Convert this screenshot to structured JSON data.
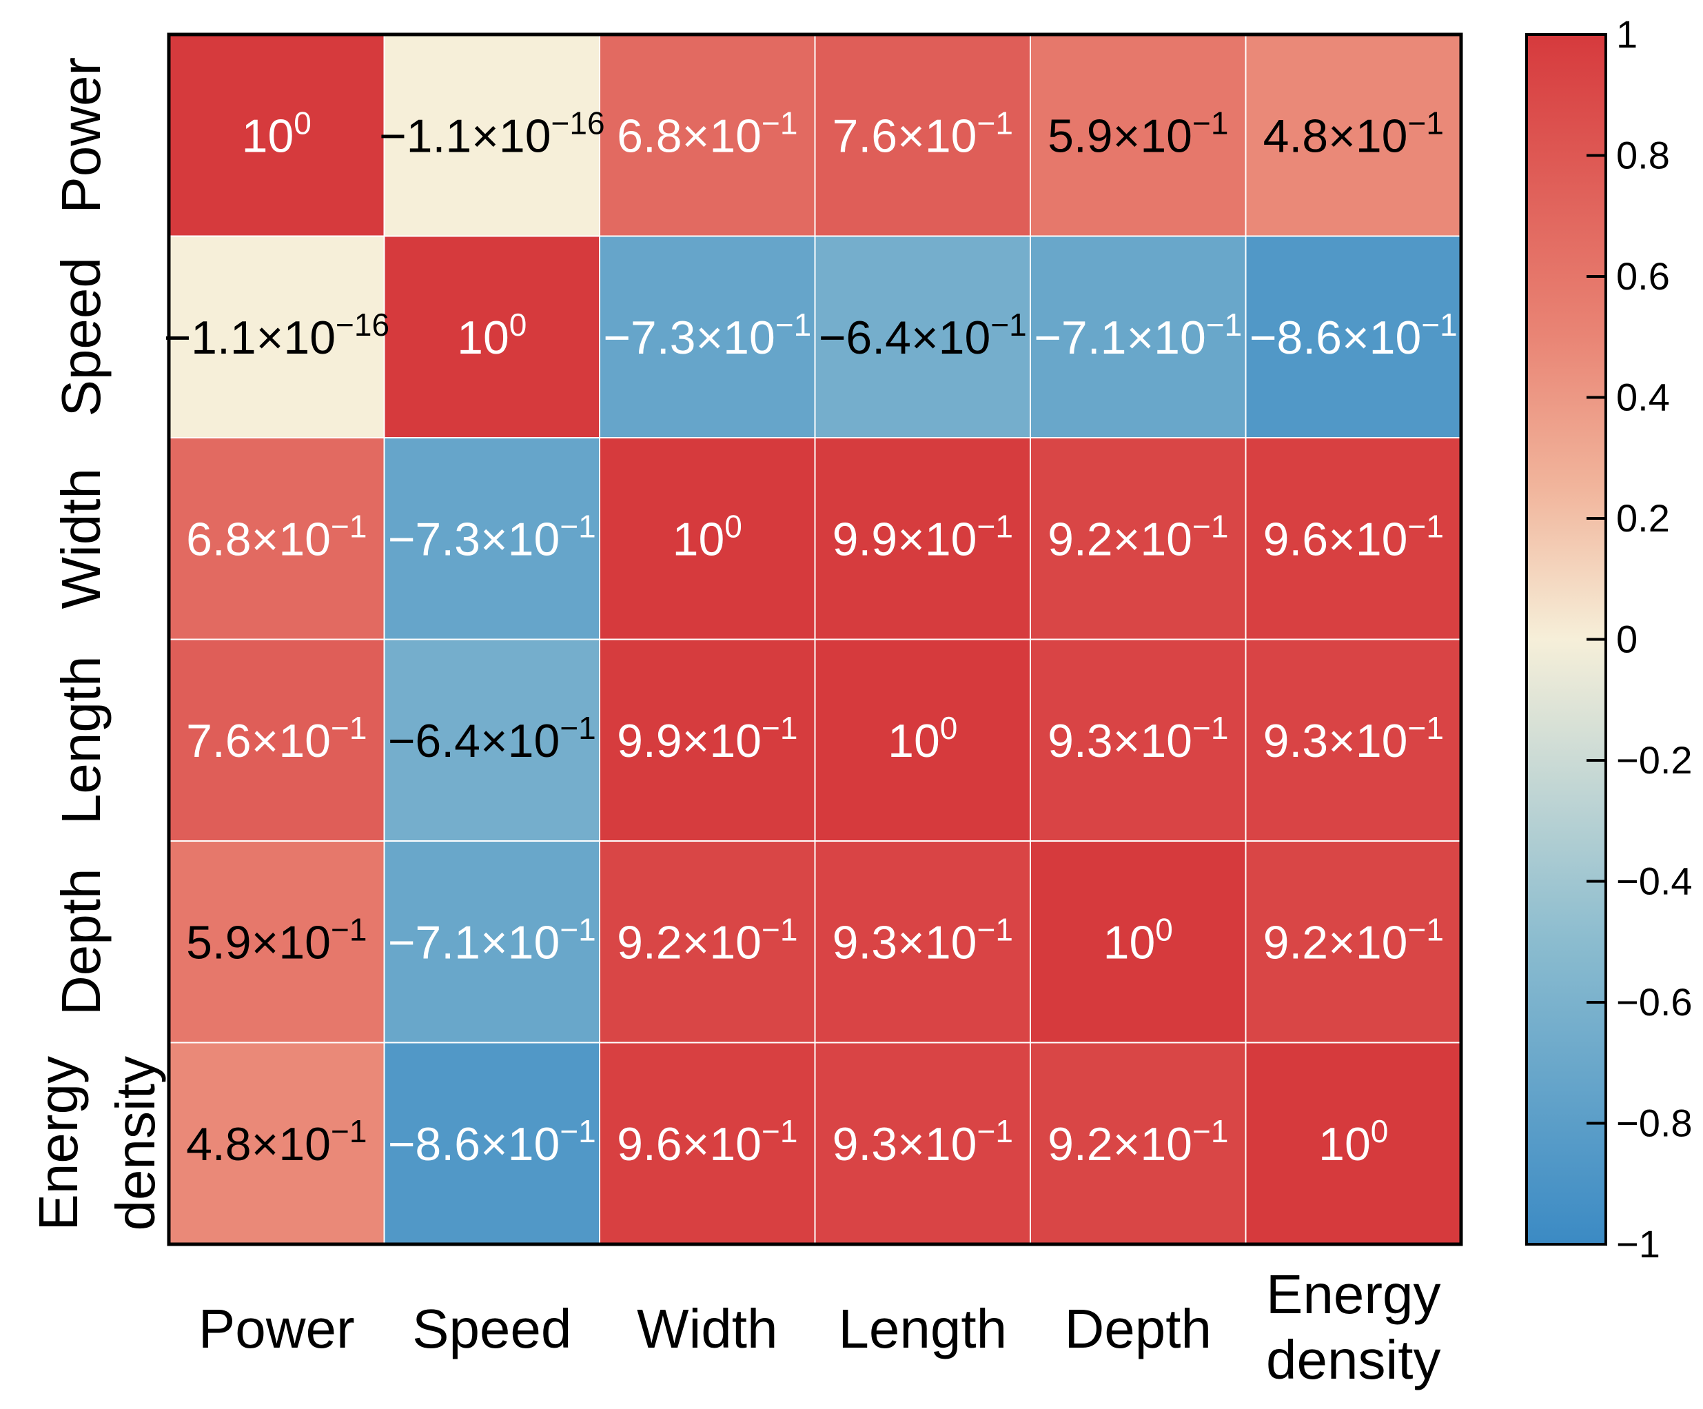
{
  "chart_data": {
    "type": "heatmap",
    "title": "",
    "xlabel": "",
    "ylabel": "",
    "row_labels": [
      [
        "Power"
      ],
      [
        "Speed"
      ],
      [
        "Width"
      ],
      [
        "Length"
      ],
      [
        "Depth"
      ],
      [
        "Energy",
        "density"
      ]
    ],
    "col_labels": [
      [
        "Power"
      ],
      [
        "Speed"
      ],
      [
        "Width"
      ],
      [
        "Length"
      ],
      [
        "Depth"
      ],
      [
        "Energy",
        "density"
      ]
    ],
    "values": [
      [
        1.0,
        -1.1e-16,
        0.68,
        0.76,
        0.59,
        0.48
      ],
      [
        -1.1e-16,
        1.0,
        -0.73,
        -0.64,
        -0.71,
        -0.86
      ],
      [
        0.68,
        -0.73,
        1.0,
        0.99,
        0.92,
        0.96
      ],
      [
        0.76,
        -0.64,
        0.99,
        1.0,
        0.93,
        0.93
      ],
      [
        0.59,
        -0.71,
        0.92,
        0.93,
        1.0,
        0.92
      ],
      [
        0.48,
        -0.86,
        0.96,
        0.93,
        0.92,
        1.0
      ]
    ],
    "cell_labels": [
      [
        [
          "10",
          "0"
        ],
        [
          "−1.1×10",
          "−16"
        ],
        [
          "6.8×10",
          "−1"
        ],
        [
          "7.6×10",
          "−1"
        ],
        [
          "5.9×10",
          "−1"
        ],
        [
          "4.8×10",
          "−1"
        ]
      ],
      [
        [
          "−1.1×10",
          "−16"
        ],
        [
          "10",
          "0"
        ],
        [
          "−7.3×10",
          "−1"
        ],
        [
          "−6.4×10",
          "−1"
        ],
        [
          "−7.1×10",
          "−1"
        ],
        [
          "−8.6×10",
          "−1"
        ]
      ],
      [
        [
          "6.8×10",
          "−1"
        ],
        [
          "−7.3×10",
          "−1"
        ],
        [
          "10",
          "0"
        ],
        [
          "9.9×10",
          "−1"
        ],
        [
          "9.2×10",
          "−1"
        ],
        [
          "9.6×10",
          "−1"
        ]
      ],
      [
        [
          "7.6×10",
          "−1"
        ],
        [
          "−6.4×10",
          "−1"
        ],
        [
          "9.9×10",
          "−1"
        ],
        [
          "10",
          "0"
        ],
        [
          "9.3×10",
          "−1"
        ],
        [
          "9.3×10",
          "−1"
        ]
      ],
      [
        [
          "5.9×10",
          "−1"
        ],
        [
          "−7.1×10",
          "−1"
        ],
        [
          "9.2×10",
          "−1"
        ],
        [
          "9.3×10",
          "−1"
        ],
        [
          "10",
          "0"
        ],
        [
          "9.2×10",
          "−1"
        ]
      ],
      [
        [
          "4.8×10",
          "−1"
        ],
        [
          "−8.6×10",
          "−1"
        ],
        [
          "9.6×10",
          "−1"
        ],
        [
          "9.3×10",
          "−1"
        ],
        [
          "9.2×10",
          "−1"
        ],
        [
          "10",
          "0"
        ]
      ]
    ],
    "text_color": [
      [
        "#ffffff",
        "#000000",
        "#ffffff",
        "#ffffff",
        "#000000",
        "#000000"
      ],
      [
        "#000000",
        "#ffffff",
        "#ffffff",
        "#000000",
        "#ffffff",
        "#ffffff"
      ],
      [
        "#ffffff",
        "#ffffff",
        "#ffffff",
        "#ffffff",
        "#ffffff",
        "#ffffff"
      ],
      [
        "#ffffff",
        "#000000",
        "#ffffff",
        "#ffffff",
        "#ffffff",
        "#ffffff"
      ],
      [
        "#000000",
        "#ffffff",
        "#ffffff",
        "#ffffff",
        "#ffffff",
        "#ffffff"
      ],
      [
        "#000000",
        "#ffffff",
        "#ffffff",
        "#ffffff",
        "#ffffff",
        "#ffffff"
      ]
    ],
    "colorbar": {
      "range": [
        -1,
        1
      ],
      "ticks": [
        1,
        0.8,
        0.6,
        0.4,
        0.2,
        0,
        -0.2,
        -0.4,
        -0.6,
        -0.8,
        -1
      ],
      "tick_labels": [
        "1",
        "0.8",
        "0.6",
        "0.4",
        "0.2",
        "0",
        "−0.2",
        "−0.4",
        "−0.6",
        "−0.8",
        "−1"
      ],
      "colors": [
        {
          "v": -1.0,
          "c": "#3b8ac4"
        },
        {
          "v": -0.5,
          "c": "#8bbccf"
        },
        {
          "v": 0.0,
          "c": "#f6efd9"
        },
        {
          "v": 0.25,
          "c": "#f1b59c"
        },
        {
          "v": 0.5,
          "c": "#e98575"
        },
        {
          "v": 1.0,
          "c": "#d63a3d"
        }
      ]
    }
  }
}
